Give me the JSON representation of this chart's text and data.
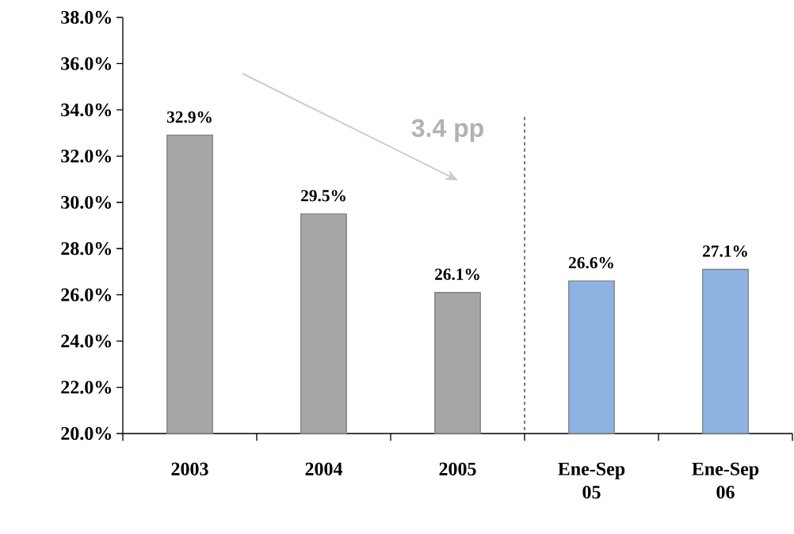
{
  "chart_data": {
    "type": "bar",
    "categories": [
      "2003",
      "2004",
      "2005",
      "Ene-Sep 05",
      "Ene-Sep 06"
    ],
    "values": [
      32.9,
      29.5,
      26.1,
      26.6,
      27.1
    ],
    "colors": [
      "#a6a6a6",
      "#a6a6a6",
      "#a6a6a6",
      "#8db3e2",
      "#8db3e2"
    ],
    "value_labels": [
      "32.9%",
      "29.5%",
      "26.1%",
      "26.6%",
      "27.1%"
    ],
    "ylim": [
      20,
      38
    ],
    "yticks": [
      {
        "value": 20,
        "label": "20.0%"
      },
      {
        "value": 22,
        "label": "22.0%"
      },
      {
        "value": 24,
        "label": "24.0%"
      },
      {
        "value": 26,
        "label": "26.0%"
      },
      {
        "value": 28,
        "label": "28.0%"
      },
      {
        "value": 30,
        "label": "30.0%"
      },
      {
        "value": 32,
        "label": "32.0%"
      },
      {
        "value": 34,
        "label": "34.0%"
      },
      {
        "value": 36,
        "label": "36.0%"
      },
      {
        "value": 38,
        "label": "38.0%"
      }
    ],
    "annotations": [
      "3.4 pp"
    ],
    "grid": false
  }
}
